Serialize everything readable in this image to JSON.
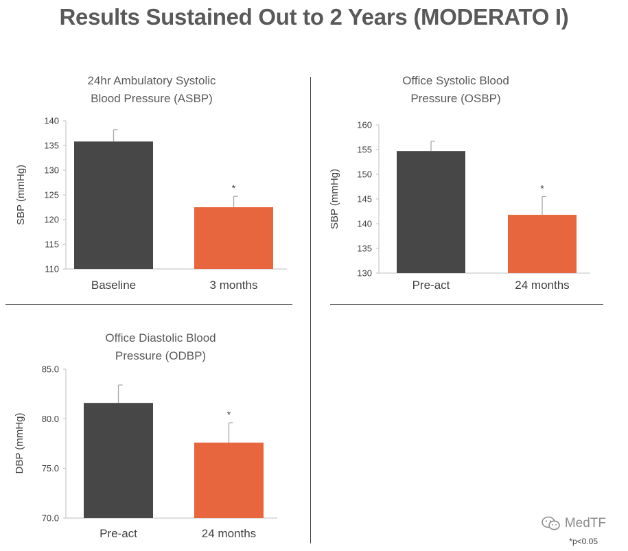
{
  "title": "Results Sustained Out to 2 Years (MODERATO I)",
  "colors": {
    "baseline": "#474747",
    "followup": "#E8663D",
    "axis": "#bfbfbf",
    "error": "#a6a6a6"
  },
  "icons": {
    "watermark": "wechat-icon"
  },
  "watermark": "MedTF",
  "footnote": "*p<0.05",
  "chart_data": [
    {
      "type": "bar",
      "title": "24hr Ambulatory Systolic Blood Pressure (ASBP)",
      "title_lines": [
        "24hr Ambulatory Systolic",
        "Blood Pressure (ASBP)"
      ],
      "categories": [
        "Baseline",
        "3 months"
      ],
      "values": [
        135.8,
        122.5
      ],
      "error_upper": [
        138.2,
        124.7
      ],
      "significance": [
        "",
        "*"
      ],
      "ylabel": "SBP (mmHg)",
      "ylim": [
        110,
        140
      ],
      "yticks": [
        "110",
        "115",
        "120",
        "125",
        "130",
        "135",
        "140"
      ],
      "grid": false
    },
    {
      "type": "bar",
      "title": "Office Systolic Blood Pressure (OSBP)",
      "title_lines": [
        "Office Systolic Blood",
        "Pressure (OSBP)"
      ],
      "categories": [
        "Pre-act",
        "24 months"
      ],
      "values": [
        154.7,
        141.8
      ],
      "error_upper": [
        156.7,
        145.5
      ],
      "significance": [
        "",
        "*"
      ],
      "ylabel": "SBP (mmHg)",
      "ylim": [
        130,
        160
      ],
      "yticks": [
        "130",
        "135",
        "140",
        "145",
        "150",
        "155",
        "160"
      ],
      "grid": false
    },
    {
      "type": "bar",
      "title": "Office Diastolic Blood Pressure (ODBP)",
      "title_lines": [
        "Office Diastolic Blood",
        "Pressure (ODBP)"
      ],
      "categories": [
        "Pre-act",
        "24 months"
      ],
      "values": [
        81.6,
        77.6
      ],
      "error_upper": [
        83.4,
        79.6
      ],
      "significance": [
        "",
        "*"
      ],
      "ylabel": "DBP (mmHg)",
      "ylim": [
        70,
        85
      ],
      "yticks": [
        "70.0",
        "75.0",
        "80.0",
        "85.0"
      ],
      "grid": false
    }
  ]
}
